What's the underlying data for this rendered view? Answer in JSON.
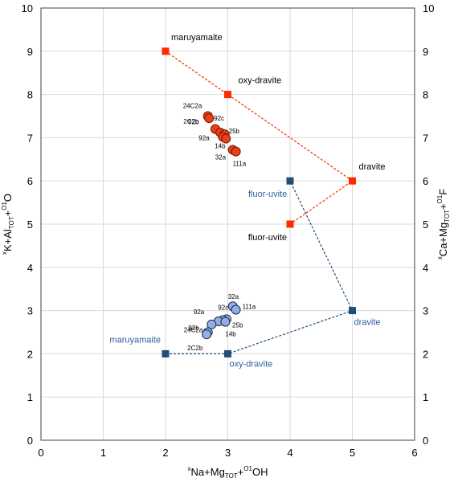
{
  "chart_data": {
    "type": "scatter",
    "xlim": [
      0,
      6
    ],
    "ylim": [
      0,
      10
    ],
    "y2lim": [
      0,
      10
    ],
    "x_ticks": [
      "0",
      "1",
      "2",
      "3",
      "4",
      "5",
      "6"
    ],
    "y_ticks": [
      "0",
      "1",
      "2",
      "3",
      "4",
      "5",
      "6",
      "7",
      "8",
      "9",
      "10"
    ],
    "y2_ticks": [
      "0",
      "1",
      "2",
      "3",
      "4",
      "5",
      "6",
      "7",
      "8",
      "9",
      "10"
    ],
    "grid": true,
    "xlabel": {
      "pre": "x",
      "main1": "Na+Mg",
      "sub1": "TOT",
      "mid": "+",
      "sup2": "O1",
      "main2": "OH"
    },
    "ylabel": {
      "pre": "x",
      "main1": "K+Al",
      "sub1": "TOT",
      "mid": "+",
      "sup2": "O1",
      "main2": "O"
    },
    "y2label": {
      "pre": "x",
      "main1": "Ca+Mg",
      "sub1": "TOT",
      "mid": "+",
      "sup2": "O1",
      "main2": "F"
    },
    "colors": {
      "red": "#ff2a00",
      "navy": "#1f4e79",
      "blue_label": "#2e5f9e",
      "red_fill": "#e8401c",
      "red_edge": "#7a1500",
      "blue_fill": "#93aee2",
      "blue_edge": "#1a2a4a"
    },
    "red_endmembers": [
      {
        "label": "maruyamaite",
        "x": 2,
        "y": 9
      },
      {
        "label": "oxy-dravite",
        "x": 3,
        "y": 8
      },
      {
        "label": "dravite",
        "x": 5,
        "y": 6
      },
      {
        "label": "fluor-uvite",
        "x": 4,
        "y": 5
      }
    ],
    "blue_endmembers": [
      {
        "label": "maruyamaite",
        "x": 2,
        "y": 2
      },
      {
        "label": "oxy-dravite",
        "x": 3,
        "y": 2
      },
      {
        "label": "dravite",
        "x": 5,
        "y": 3
      },
      {
        "label": "fluor-uvite",
        "x": 4,
        "y": 6
      }
    ],
    "red_samples": [
      {
        "label": "24C2a",
        "x": 2.68,
        "y": 7.5
      },
      {
        "label": "2C2b",
        "x": 2.7,
        "y": 7.45
      },
      {
        "label": "92b",
        "x": 2.8,
        "y": 7.2
      },
      {
        "label": "92c",
        "x": 2.88,
        "y": 7.12
      },
      {
        "label": "25b",
        "x": 2.95,
        "y": 7.08
      },
      {
        "label": "92a",
        "x": 2.92,
        "y": 7.02
      },
      {
        "label": "14b",
        "x": 2.97,
        "y": 6.98
      },
      {
        "label": "32a",
        "x": 3.08,
        "y": 6.72
      },
      {
        "label": "111a",
        "x": 3.13,
        "y": 6.68
      }
    ],
    "blue_samples": [
      {
        "label": "32a",
        "x": 3.08,
        "y": 3.1
      },
      {
        "label": "111a",
        "x": 3.13,
        "y": 3.02
      },
      {
        "label": "25b",
        "x": 2.98,
        "y": 2.8
      },
      {
        "label": "92c",
        "x": 2.92,
        "y": 2.78
      },
      {
        "label": "92a",
        "x": 2.85,
        "y": 2.75
      },
      {
        "label": "14b",
        "x": 2.96,
        "y": 2.74
      },
      {
        "label": "92b",
        "x": 2.74,
        "y": 2.68
      },
      {
        "label": "24C2a",
        "x": 2.68,
        "y": 2.5
      },
      {
        "label": "2C2b",
        "x": 2.66,
        "y": 2.45
      }
    ]
  }
}
